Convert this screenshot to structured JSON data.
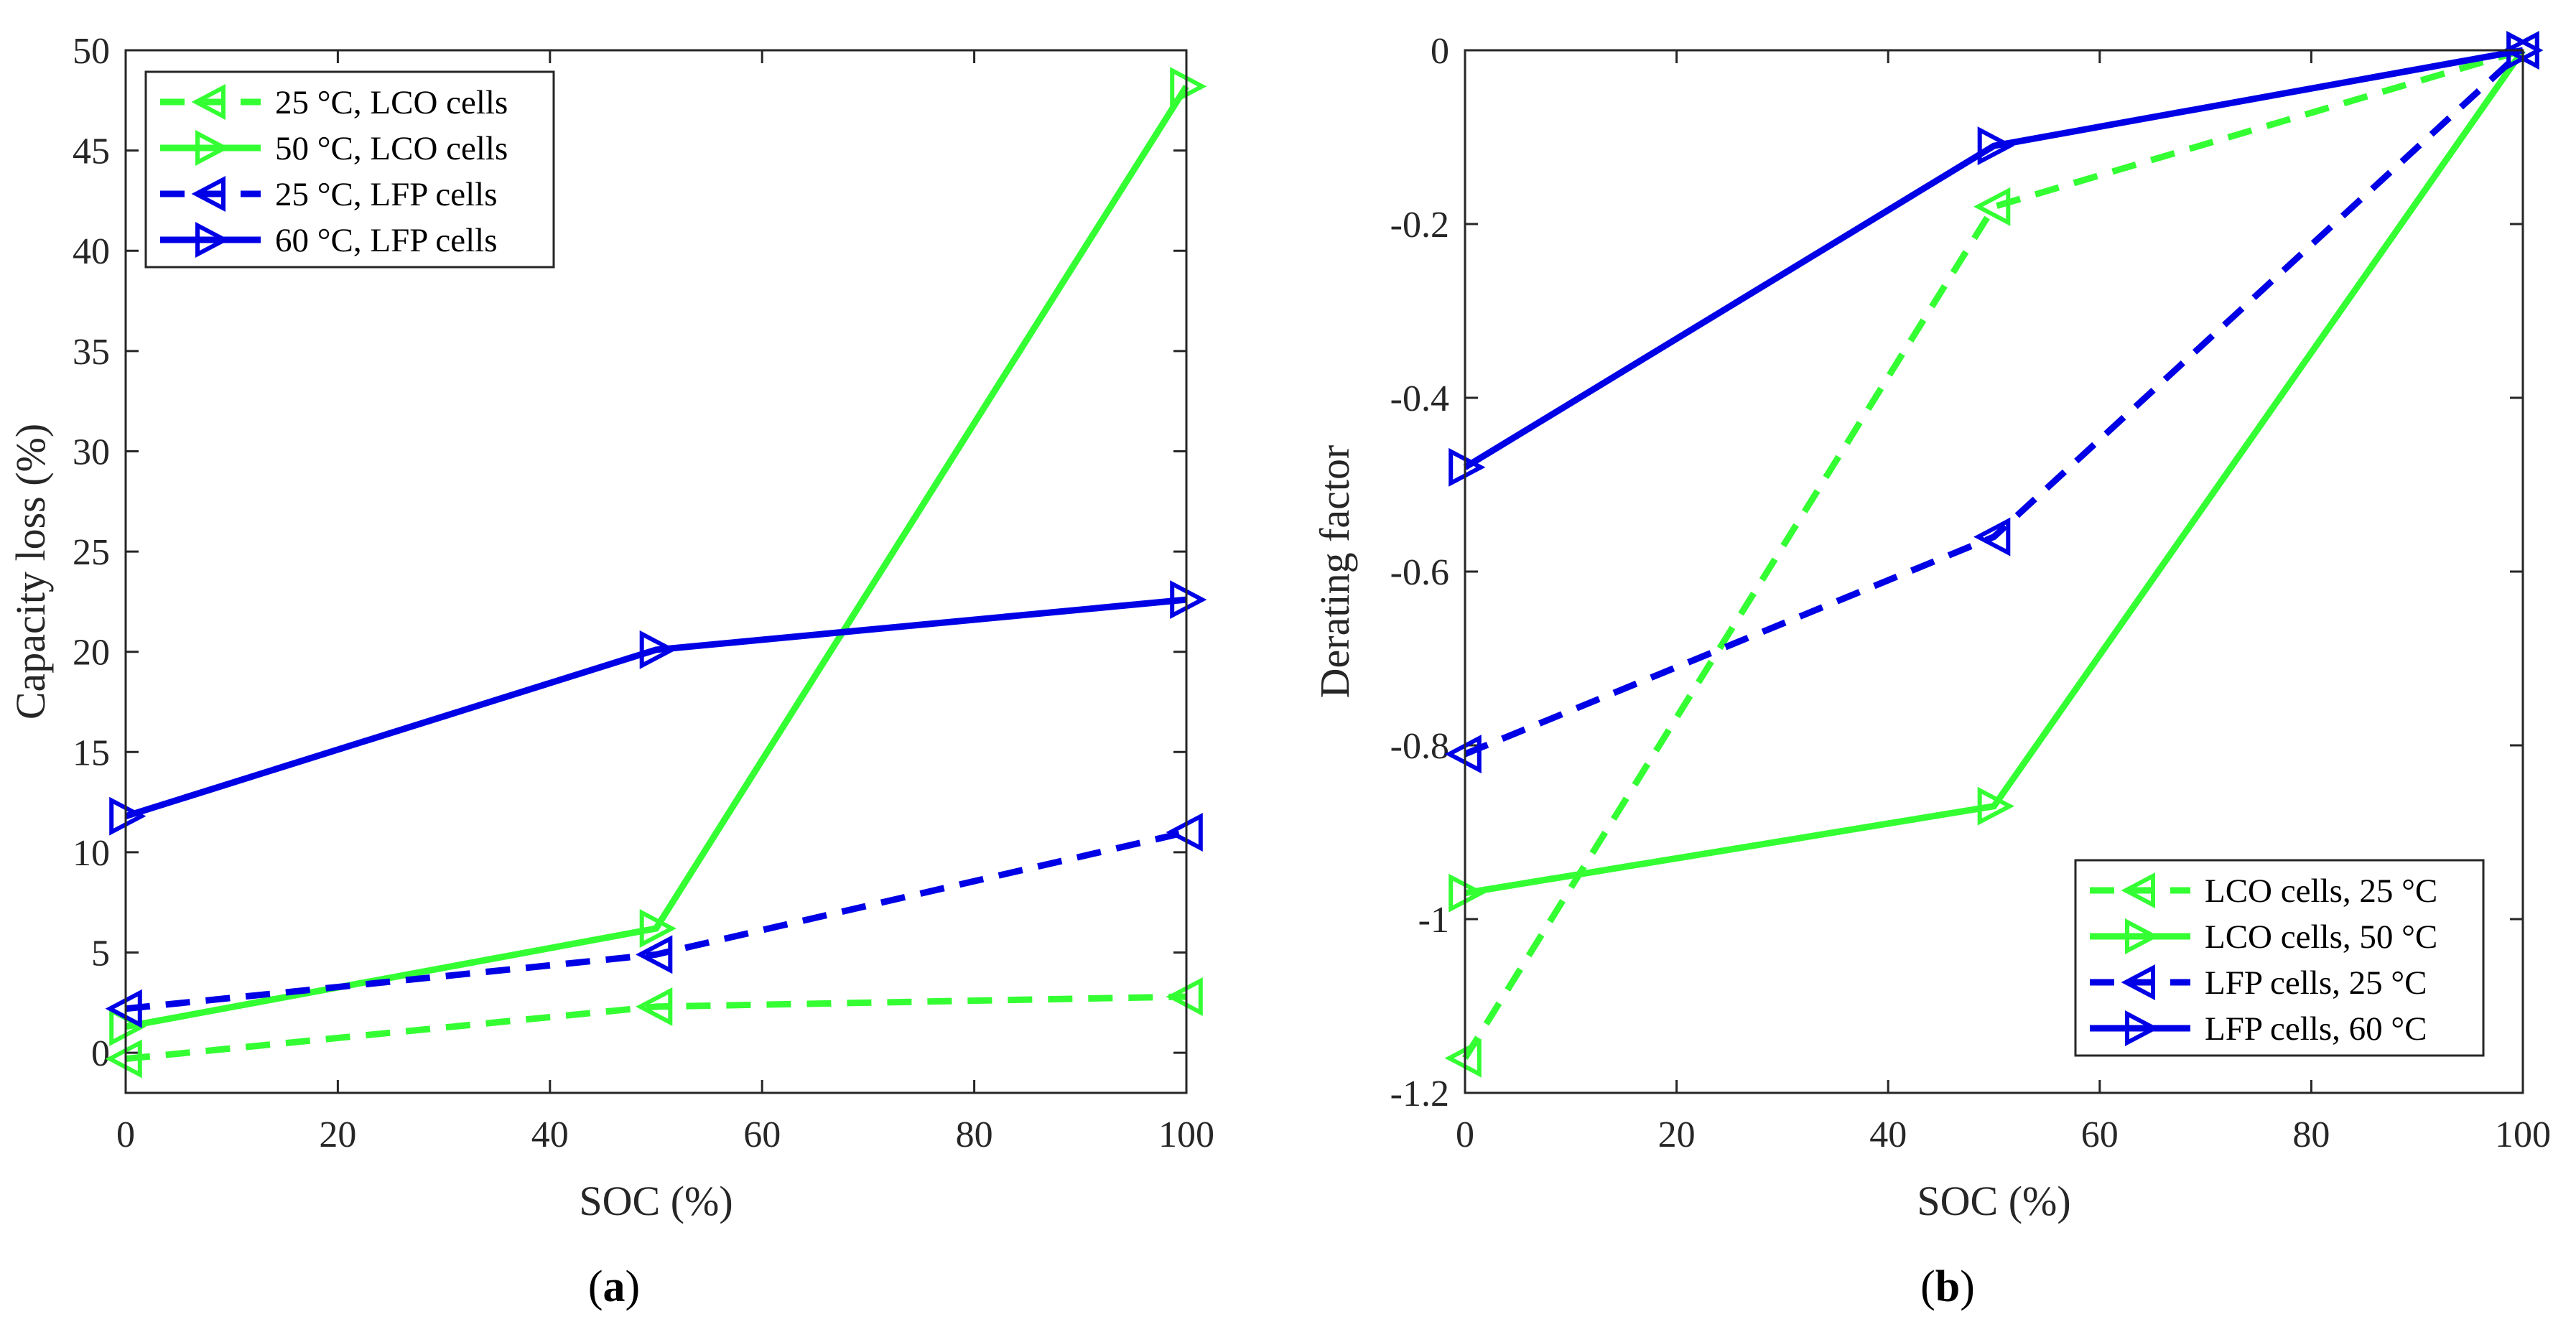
{
  "chart_data": [
    {
      "type": "line",
      "panel_label": "a",
      "xlabel": "SOC (%)",
      "ylabel": "Capacity loss (%)",
      "xlim": [
        0,
        100
      ],
      "ylim": [
        -2,
        50
      ],
      "xticks": [
        "0",
        "20",
        "40",
        "60",
        "80",
        "100"
      ],
      "yticks": [
        "0",
        "5",
        "10",
        "15",
        "20",
        "25",
        "30",
        "35",
        "40",
        "45",
        "50"
      ],
      "legend_position": "top-left",
      "series": [
        {
          "name": "25 °C, LCO cells",
          "color": "#33ff33",
          "dash": true,
          "marker": "triangle-left",
          "x": [
            0,
            50,
            100
          ],
          "y": [
            -0.3,
            2.3,
            2.8
          ]
        },
        {
          "name": "50 °C, LCO cells",
          "color": "#33ff33",
          "dash": false,
          "marker": "triangle-right",
          "x": [
            0,
            50,
            100
          ],
          "y": [
            1.3,
            6.2,
            48.2
          ]
        },
        {
          "name": "25 °C, LFP cells",
          "color": "#0000e6",
          "dash": true,
          "marker": "triangle-left",
          "x": [
            0,
            50,
            100
          ],
          "y": [
            2.2,
            4.9,
            11.0
          ]
        },
        {
          "name": "60 °C, LFP cells",
          "color": "#0000e6",
          "dash": false,
          "marker": "triangle-right",
          "x": [
            0,
            50,
            100
          ],
          "y": [
            11.8,
            20.1,
            22.6
          ]
        }
      ]
    },
    {
      "type": "line",
      "panel_label": "b",
      "xlabel": "SOC (%)",
      "ylabel": "Derating factor",
      "xlim": [
        0,
        100
      ],
      "ylim": [
        -1.2,
        0
      ],
      "xticks": [
        "0",
        "20",
        "40",
        "60",
        "80",
        "100"
      ],
      "yticks": [
        "0",
        "-0.2",
        "-0.4",
        "-0.6",
        "-0.8",
        "-1",
        "-1.2"
      ],
      "legend_position": "bottom-right",
      "series": [
        {
          "name": "LCO cells, 25 °C",
          "color": "#33ff33",
          "dash": true,
          "marker": "triangle-left",
          "x": [
            0,
            50,
            100
          ],
          "y": [
            -1.16,
            -0.18,
            0
          ]
        },
        {
          "name": "LCO cells, 50 °C",
          "color": "#33ff33",
          "dash": false,
          "marker": "triangle-right",
          "x": [
            0,
            50,
            100
          ],
          "y": [
            -0.97,
            -0.87,
            0
          ]
        },
        {
          "name": "LFP cells, 25 °C",
          "color": "#0000e6",
          "dash": true,
          "marker": "triangle-left",
          "x": [
            0,
            50,
            100
          ],
          "y": [
            -0.81,
            -0.56,
            0
          ]
        },
        {
          "name": "LFP cells, 60 °C",
          "color": "#0000e6",
          "dash": false,
          "marker": "triangle-right",
          "x": [
            0,
            50,
            100
          ],
          "y": [
            -0.48,
            -0.11,
            0
          ]
        }
      ]
    }
  ]
}
